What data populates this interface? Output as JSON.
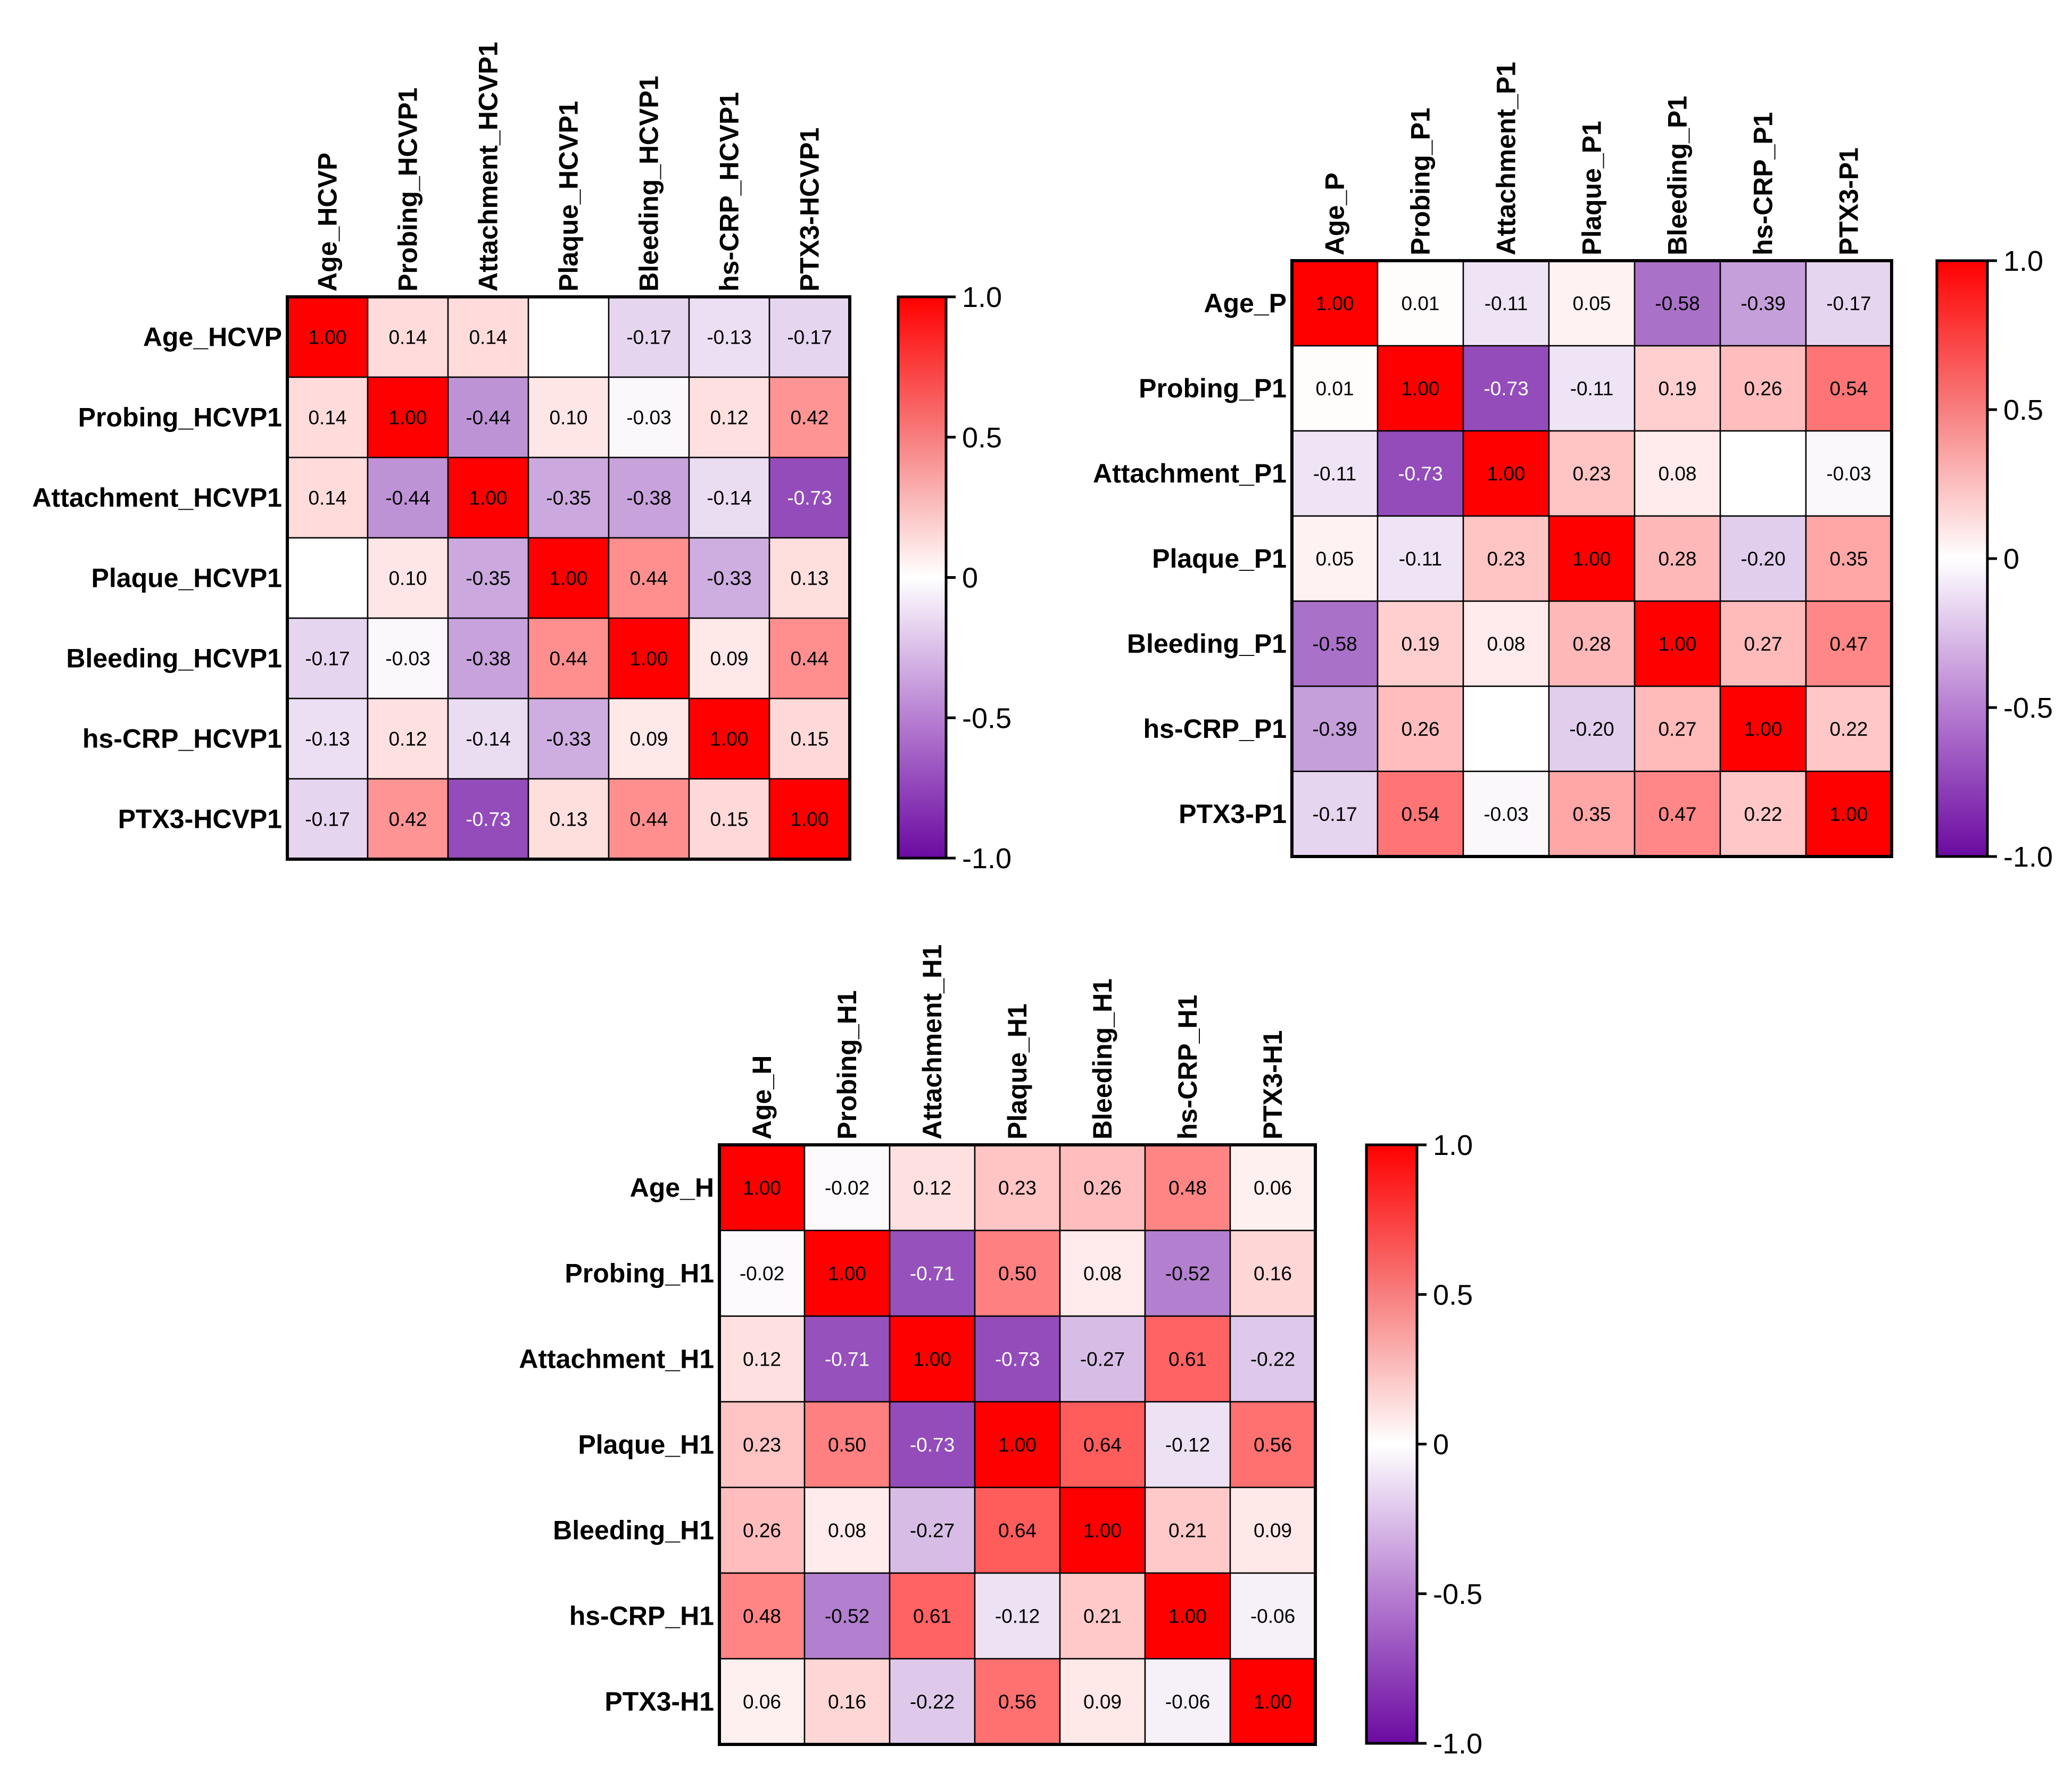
{
  "chart_data": [
    {
      "type": "heatmap",
      "labels": [
        "Age_HCVP",
        "Probing_HCVP1",
        "Attachment_HCVP1",
        "Plaque_HCVP1",
        "Bleeding_HCVP1",
        "hs-CRP_HCVP1",
        "PTX3-HCVP1"
      ],
      "values": [
        [
          1.0,
          0.14,
          0.14,
          null,
          -0.17,
          -0.13,
          -0.17
        ],
        [
          0.14,
          1.0,
          -0.44,
          0.1,
          -0.03,
          0.12,
          0.42
        ],
        [
          0.14,
          -0.44,
          1.0,
          -0.35,
          -0.38,
          -0.14,
          -0.73
        ],
        [
          null,
          0.1,
          -0.35,
          1.0,
          0.44,
          -0.33,
          0.13
        ],
        [
          -0.17,
          -0.03,
          -0.38,
          0.44,
          1.0,
          0.09,
          0.44
        ],
        [
          -0.13,
          0.12,
          -0.14,
          -0.33,
          0.09,
          1.0,
          0.15
        ],
        [
          -0.17,
          0.42,
          -0.73,
          0.13,
          0.44,
          0.15,
          1.0
        ]
      ],
      "colorbar": {
        "ticks": [
          "1.0",
          "0.5",
          "0",
          "-0.5",
          "-1.0"
        ],
        "range": [
          -1,
          1
        ]
      }
    },
    {
      "type": "heatmap",
      "labels": [
        "Age_P",
        "Probing_P1",
        "Attachment_P1",
        "Plaque_P1",
        "Bleeding_P1",
        "hs-CRP_P1",
        "PTX3-P1"
      ],
      "values": [
        [
          1.0,
          0.01,
          -0.11,
          0.05,
          -0.58,
          -0.39,
          -0.17
        ],
        [
          0.01,
          1.0,
          -0.73,
          -0.11,
          0.19,
          0.26,
          0.54
        ],
        [
          -0.11,
          -0.73,
          1.0,
          0.23,
          0.08,
          null,
          -0.03
        ],
        [
          0.05,
          -0.11,
          0.23,
          1.0,
          0.28,
          -0.2,
          0.35
        ],
        [
          -0.58,
          0.19,
          0.08,
          0.28,
          1.0,
          0.27,
          0.47
        ],
        [
          -0.39,
          0.26,
          null,
          -0.2,
          0.27,
          1.0,
          0.22
        ],
        [
          -0.17,
          0.54,
          -0.03,
          0.35,
          0.47,
          0.22,
          1.0
        ]
      ],
      "colorbar": {
        "ticks": [
          "1.0",
          "0.5",
          "0",
          "-0.5",
          "-1.0"
        ],
        "range": [
          -1,
          1
        ]
      }
    },
    {
      "type": "heatmap",
      "labels": [
        "Age_H",
        "Probing_H1",
        "Attachment_H1",
        "Plaque_H1",
        "Bleeding_H1",
        "hs-CRP_H1",
        "PTX3-H1"
      ],
      "values": [
        [
          1.0,
          -0.02,
          0.12,
          0.23,
          0.26,
          0.48,
          0.06
        ],
        [
          -0.02,
          1.0,
          -0.71,
          0.5,
          0.08,
          -0.52,
          0.16
        ],
        [
          0.12,
          -0.71,
          1.0,
          -0.73,
          -0.27,
          0.61,
          -0.22
        ],
        [
          0.23,
          0.5,
          -0.73,
          1.0,
          0.64,
          -0.12,
          0.56
        ],
        [
          0.26,
          0.08,
          -0.27,
          0.64,
          1.0,
          0.21,
          0.09
        ],
        [
          0.48,
          -0.52,
          0.61,
          -0.12,
          0.21,
          1.0,
          -0.06
        ],
        [
          0.06,
          0.16,
          -0.22,
          0.56,
          0.09,
          -0.06,
          1.0
        ]
      ],
      "colorbar": {
        "ticks": [
          "1.0",
          "0.5",
          "0",
          "-0.5",
          "-1.0"
        ],
        "range": [
          -1,
          1
        ]
      }
    }
  ],
  "colors": {
    "positive": "#ff0000",
    "zero": "#ffffff",
    "negative": "#6b0aa1"
  }
}
